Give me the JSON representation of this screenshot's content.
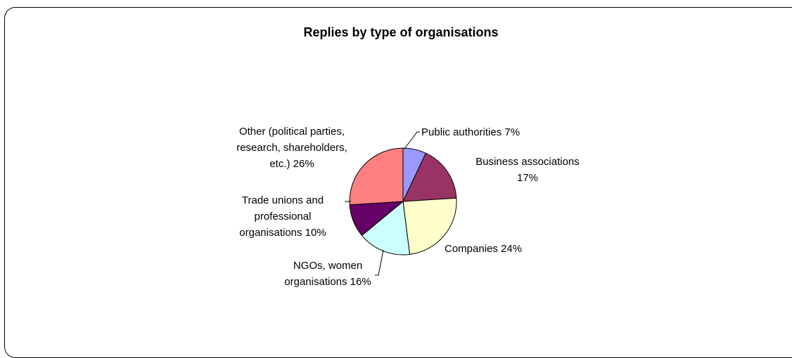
{
  "chart_data": {
    "type": "pie",
    "title": "Replies by type of organisations",
    "slices": [
      {
        "label": "Public authorities 7%",
        "lines": [
          "Public authorities 7%"
        ],
        "value": 7,
        "color": "#9999FF"
      },
      {
        "label": "Business associations 17%",
        "lines": [
          "Business associations",
          "17%"
        ],
        "value": 17,
        "color": "#993366"
      },
      {
        "label": "Companies 24%",
        "lines": [
          "Companies 24%"
        ],
        "value": 24,
        "color": "#FFFFCC"
      },
      {
        "label": "NGOs, women organisations 16%",
        "lines": [
          "NGOs, women",
          "organisations 16%"
        ],
        "value": 16,
        "color": "#CCFFFF"
      },
      {
        "label": "Trade unions and professional organisations 10%",
        "lines": [
          "Trade unions and",
          "professional",
          "organisations 10%"
        ],
        "value": 10,
        "color": "#660066"
      },
      {
        "label": "Other (political parties, research, shareholders, etc.) 26%",
        "lines": [
          "Other (political parties,",
          "research, shareholders,",
          "etc.) 26%"
        ],
        "value": 26,
        "color": "#FF8080"
      }
    ],
    "start_angle_deg": 0,
    "direction": "clockwise",
    "legend": "none"
  }
}
